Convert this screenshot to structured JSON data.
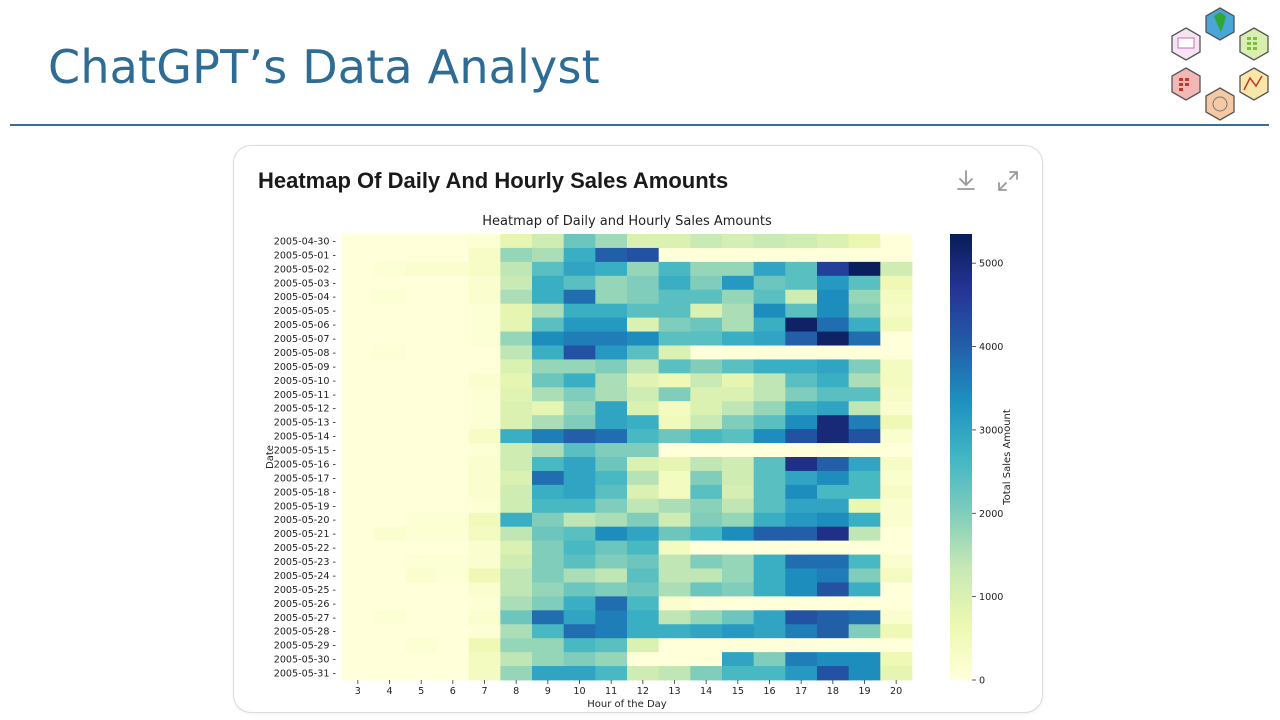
{
  "slide": {
    "title": "ChatGPT’s Data Analyst"
  },
  "card": {
    "title": "Heatmap Of Daily And Hourly Sales Amounts"
  },
  "icons": {
    "download": "download-icon",
    "expand": "expand-icon",
    "logo": "hexagon-logo-icon"
  },
  "colors": {
    "title": "#2e6b95",
    "divider": "#3a6d97",
    "colormap": [
      "#ffffd9",
      "#edf8b1",
      "#c7e9b4",
      "#7fcdbb",
      "#41b6c4",
      "#1d91c0",
      "#225ea8",
      "#253494",
      "#081d58"
    ]
  },
  "chart_data": {
    "type": "heatmap",
    "title": "Heatmap of Daily and Hourly Sales Amounts",
    "xlabel": "Hour of the Day",
    "ylabel": "Date",
    "colorbar_label": "Total Sales Amount",
    "colorbar_ticks": [
      0,
      1000,
      2000,
      3000,
      4000,
      5000
    ],
    "vmin": 0,
    "vmax": 5350,
    "x": [
      3,
      4,
      5,
      6,
      7,
      8,
      9,
      10,
      11,
      12,
      13,
      14,
      15,
      16,
      17,
      18,
      19,
      20
    ],
    "y": [
      "2005-04-30",
      "2005-05-01",
      "2005-05-02",
      "2005-05-03",
      "2005-05-04",
      "2005-05-05",
      "2005-05-06",
      "2005-05-07",
      "2005-05-08",
      "2005-05-09",
      "2005-05-10",
      "2005-05-11",
      "2005-05-12",
      "2005-05-13",
      "2005-05-14",
      "2005-05-15",
      "2005-05-16",
      "2005-05-17",
      "2005-05-18",
      "2005-05-19",
      "2005-05-20",
      "2005-05-21",
      "2005-05-22",
      "2005-05-23",
      "2005-05-24",
      "2005-05-25",
      "2005-05-26",
      "2005-05-27",
      "2005-05-28",
      "2005-05-29",
      "2005-05-30",
      "2005-05-31"
    ],
    "values": [
      [
        0,
        0,
        0,
        0,
        100,
        800,
        1200,
        2200,
        1700,
        1000,
        1000,
        1300,
        1100,
        1300,
        1200,
        1000,
        700,
        0
      ],
      [
        0,
        0,
        0,
        0,
        300,
        1800,
        1600,
        2800,
        4000,
        4200,
        0,
        0,
        0,
        0,
        0,
        0,
        0,
        0
      ],
      [
        0,
        100,
        200,
        200,
        300,
        1400,
        2400,
        3000,
        2800,
        1800,
        2600,
        1800,
        1800,
        3000,
        2400,
        4500,
        5300,
        1200
      ],
      [
        0,
        0,
        0,
        0,
        200,
        1300,
        2800,
        2400,
        1800,
        2000,
        2800,
        2000,
        3200,
        2200,
        2400,
        3200,
        2400,
        600
      ],
      [
        0,
        100,
        0,
        0,
        200,
        1600,
        2800,
        3800,
        1800,
        2000,
        2400,
        2400,
        1800,
        2400,
        1200,
        3400,
        1800,
        400
      ],
      [
        0,
        0,
        0,
        0,
        100,
        800,
        1600,
        2800,
        2800,
        2400,
        2400,
        1000,
        1600,
        3400,
        2400,
        3400,
        2000,
        300
      ],
      [
        0,
        0,
        0,
        0,
        100,
        800,
        2400,
        3200,
        3200,
        1000,
        2000,
        2200,
        1600,
        2800,
        5200,
        3800,
        2800,
        500
      ],
      [
        0,
        0,
        0,
        0,
        100,
        1800,
        3400,
        3600,
        3600,
        3400,
        2400,
        2400,
        2800,
        3000,
        4000,
        5200,
        3800,
        0
      ],
      [
        0,
        100,
        0,
        0,
        0,
        1400,
        2800,
        4200,
        3200,
        2400,
        1000,
        0,
        0,
        0,
        0,
        0,
        0,
        0
      ],
      [
        0,
        0,
        0,
        0,
        0,
        1000,
        1800,
        1800,
        2000,
        1400,
        2400,
        2000,
        2400,
        2800,
        2800,
        3000,
        2000,
        400
      ],
      [
        0,
        0,
        0,
        0,
        200,
        800,
        2200,
        2800,
        1600,
        900,
        600,
        1300,
        800,
        1400,
        2400,
        2800,
        1600,
        400
      ],
      [
        0,
        0,
        0,
        0,
        100,
        900,
        1600,
        2000,
        1600,
        1200,
        2000,
        1000,
        1000,
        1400,
        2000,
        2400,
        2400,
        300
      ],
      [
        0,
        0,
        0,
        0,
        100,
        1000,
        800,
        1800,
        3000,
        1000,
        400,
        1000,
        1400,
        1800,
        2800,
        3000,
        1400,
        200
      ],
      [
        0,
        0,
        0,
        0,
        100,
        1000,
        1600,
        2000,
        3000,
        2800,
        500,
        1300,
        2000,
        2400,
        3400,
        5000,
        3600,
        600
      ],
      [
        0,
        0,
        0,
        0,
        300,
        2800,
        3600,
        4000,
        3800,
        2600,
        2200,
        2600,
        2400,
        3400,
        4200,
        5000,
        4200,
        200
      ],
      [
        0,
        0,
        0,
        0,
        100,
        1200,
        1600,
        2400,
        2000,
        2000,
        0,
        0,
        0,
        0,
        0,
        0,
        0,
        0
      ],
      [
        0,
        0,
        0,
        0,
        200,
        1200,
        2600,
        3000,
        2200,
        1000,
        800,
        1400,
        1200,
        2400,
        4800,
        4000,
        3000,
        300
      ],
      [
        0,
        0,
        0,
        0,
        200,
        1000,
        3800,
        3000,
        2600,
        1500,
        400,
        2000,
        1200,
        2400,
        3000,
        3400,
        2600,
        200
      ],
      [
        0,
        0,
        0,
        0,
        200,
        1200,
        2800,
        3000,
        2400,
        1000,
        400,
        2400,
        1100,
        2400,
        3400,
        2600,
        2600,
        300
      ],
      [
        0,
        0,
        0,
        0,
        100,
        1200,
        2600,
        2600,
        2000,
        1400,
        1600,
        1900,
        1400,
        2400,
        3000,
        3000,
        700,
        200
      ],
      [
        0,
        0,
        100,
        100,
        500,
        2800,
        2000,
        1400,
        1600,
        2000,
        1200,
        2000,
        1800,
        2800,
        3200,
        3400,
        2800,
        200
      ],
      [
        0,
        200,
        100,
        100,
        400,
        1400,
        2200,
        2400,
        3400,
        3000,
        2200,
        2600,
        3400,
        4000,
        4000,
        4800,
        1400,
        0
      ],
      [
        0,
        0,
        0,
        0,
        200,
        1000,
        2000,
        2600,
        2200,
        2600,
        400,
        0,
        0,
        0,
        0,
        0,
        0,
        0
      ],
      [
        0,
        0,
        100,
        100,
        200,
        1200,
        2000,
        2400,
        2000,
        2200,
        1400,
        2000,
        1800,
        2800,
        3800,
        3800,
        2600,
        200
      ],
      [
        0,
        0,
        200,
        100,
        600,
        1400,
        2000,
        1600,
        1400,
        2400,
        1400,
        1400,
        1800,
        2800,
        3400,
        3600,
        2000,
        400
      ],
      [
        0,
        0,
        0,
        0,
        200,
        1400,
        1800,
        2200,
        2000,
        2200,
        1600,
        2200,
        2000,
        2800,
        3400,
        4200,
        2800,
        0
      ],
      [
        0,
        0,
        0,
        0,
        100,
        1600,
        2000,
        2800,
        3800,
        2600,
        200,
        0,
        0,
        0,
        0,
        0,
        0,
        0
      ],
      [
        0,
        100,
        0,
        0,
        200,
        2200,
        3800,
        3000,
        3600,
        2800,
        1400,
        1800,
        2200,
        3000,
        4200,
        4000,
        3800,
        200
      ],
      [
        0,
        0,
        0,
        0,
        100,
        1600,
        2600,
        3800,
        3600,
        2800,
        2800,
        3000,
        3200,
        3000,
        3600,
        4000,
        2000,
        600
      ],
      [
        0,
        0,
        100,
        0,
        600,
        1800,
        1800,
        2600,
        2400,
        1000,
        0,
        0,
        0,
        0,
        0,
        0,
        0,
        0
      ],
      [
        0,
        0,
        0,
        0,
        400,
        1400,
        1800,
        2000,
        1800,
        0,
        0,
        0,
        3000,
        2000,
        3600,
        3400,
        3400,
        600
      ],
      [
        0,
        0,
        0,
        0,
        400,
        1800,
        3000,
        3000,
        2600,
        1200,
        1400,
        2000,
        2600,
        2600,
        3200,
        4200,
        3400,
        800
      ]
    ]
  }
}
